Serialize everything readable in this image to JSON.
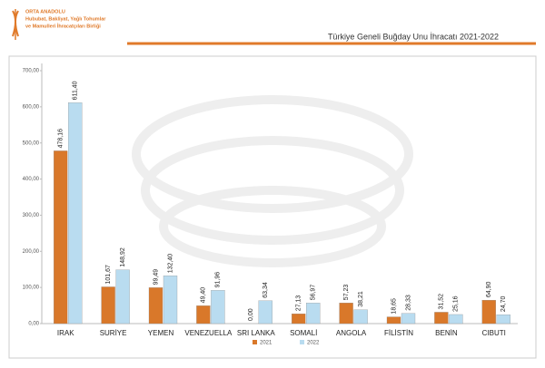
{
  "header": {
    "org_lines": [
      "ORTA ANADOLU",
      "Hububat, Bakliyat, Yağlı Tohumlar",
      "ve Mamulleri İhracatçıları Birliği"
    ]
  },
  "chart_data": {
    "type": "bar",
    "title": "Türkiye Geneli Buğday Unu İhracatı 2021-2022",
    "categories": [
      "IRAK",
      "SURİYE",
      "YEMEN",
      "VENEZUELLA",
      "SRI LANKA",
      "SOMALİ",
      "ANGOLA",
      "FİLİSTİN",
      "BENİN",
      "CIBUTI"
    ],
    "series": [
      {
        "name": "2021",
        "color": "#d9782a",
        "values": [
          478.16,
          101.67,
          99.49,
          49.4,
          0.0,
          27.13,
          57.23,
          18.65,
          31.52,
          64.9
        ],
        "value_labels": [
          "478,16",
          "101,67",
          "99,49",
          "49,40",
          "0,00",
          "27,13",
          "57,23",
          "18,65",
          "31,52",
          "64,90"
        ]
      },
      {
        "name": "2022",
        "color": "#b9dcf0",
        "values": [
          611.4,
          148.92,
          132.4,
          91.96,
          63.34,
          56.97,
          38.21,
          28.33,
          25.16,
          24.7
        ],
        "value_labels": [
          "611,40",
          "148,92",
          "132,40",
          "91,96",
          "63,34",
          "56,97",
          "38,21",
          "28,33",
          "25,16",
          "24,70"
        ]
      }
    ],
    "ylim": [
      0,
      700
    ],
    "yticks": [
      {
        "value": 0,
        "label": "0,00"
      },
      {
        "value": 100,
        "label": "100,00"
      },
      {
        "value": 200,
        "label": "200,00"
      },
      {
        "value": 300,
        "label": "300,00"
      },
      {
        "value": 400,
        "label": "400,00"
      },
      {
        "value": 500,
        "label": "500,00"
      },
      {
        "value": 600,
        "label": "600,00"
      },
      {
        "value": 700,
        "label": "700,00"
      }
    ]
  }
}
